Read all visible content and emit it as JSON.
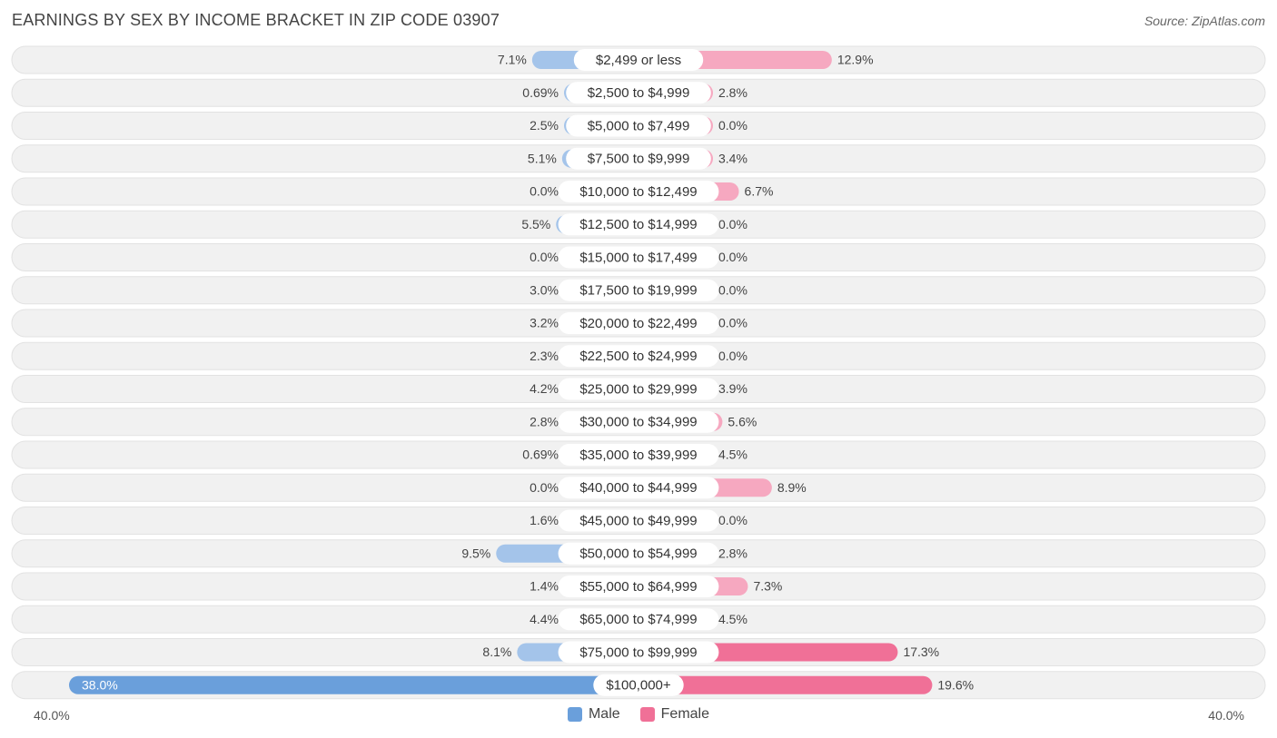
{
  "title": "EARNINGS BY SEX BY INCOME BRACKET IN ZIP CODE 03907",
  "source": "Source: ZipAtlas.com",
  "legend": {
    "male_label": "Male",
    "female_label": "Female"
  },
  "colors": {
    "male_light": "#a4c4ea",
    "male_dark": "#6a9fdb",
    "female_light": "#f6a8c0",
    "female_dark": "#f07097",
    "row_bg": "#f1f1f1",
    "row_border": "#e2e2e2"
  },
  "axis": {
    "left_label": "40.0%",
    "right_label": "40.0%"
  },
  "chart_data": {
    "type": "bar",
    "orientation": "horizontal-diverging",
    "title": "EARNINGS BY SEX BY INCOME BRACKET IN ZIP CODE 03907",
    "xlim": [
      -40,
      40
    ],
    "categories": [
      "$2,499 or less",
      "$2,500 to $4,999",
      "$5,000 to $7,499",
      "$7,500 to $9,999",
      "$10,000 to $12,499",
      "$12,500 to $14,999",
      "$15,000 to $17,499",
      "$17,500 to $19,999",
      "$20,000 to $22,499",
      "$22,500 to $24,999",
      "$25,000 to $29,999",
      "$30,000 to $34,999",
      "$35,000 to $39,999",
      "$40,000 to $44,999",
      "$45,000 to $49,999",
      "$50,000 to $54,999",
      "$55,000 to $64,999",
      "$65,000 to $74,999",
      "$75,000 to $99,999",
      "$100,000+"
    ],
    "series": [
      {
        "name": "Male",
        "values": [
          7.1,
          0.69,
          2.5,
          5.1,
          0.0,
          5.5,
          0.0,
          3.0,
          3.2,
          2.3,
          4.2,
          2.8,
          0.69,
          0.0,
          1.6,
          9.5,
          1.4,
          4.4,
          8.1,
          38.0
        ],
        "labels": [
          "7.1%",
          "0.69%",
          "2.5%",
          "5.1%",
          "0.0%",
          "5.5%",
          "0.0%",
          "3.0%",
          "3.2%",
          "2.3%",
          "4.2%",
          "2.8%",
          "0.69%",
          "0.0%",
          "1.6%",
          "9.5%",
          "1.4%",
          "4.4%",
          "8.1%",
          "38.0%"
        ]
      },
      {
        "name": "Female",
        "values": [
          12.9,
          2.8,
          0.0,
          3.4,
          6.7,
          0.0,
          0.0,
          0.0,
          0.0,
          0.0,
          3.9,
          5.6,
          4.5,
          8.9,
          0.0,
          2.8,
          7.3,
          4.5,
          17.3,
          19.6
        ],
        "labels": [
          "12.9%",
          "2.8%",
          "0.0%",
          "3.4%",
          "6.7%",
          "0.0%",
          "0.0%",
          "0.0%",
          "0.0%",
          "0.0%",
          "3.9%",
          "5.6%",
          "4.5%",
          "8.9%",
          "0.0%",
          "2.8%",
          "7.3%",
          "4.5%",
          "17.3%",
          "19.6%"
        ]
      }
    ]
  }
}
